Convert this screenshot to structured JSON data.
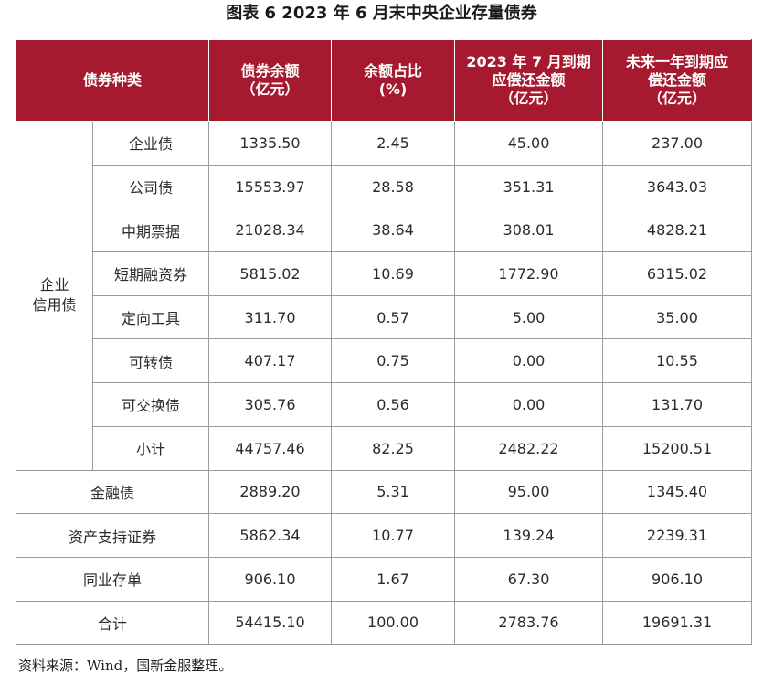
{
  "title": "图表 6  2023 年 6 月末中央企业存量债券",
  "headers": {
    "type": "债券种类",
    "balance": [
      "债券余额",
      "（亿元）"
    ],
    "ratio": [
      "余额占比",
      "(%)"
    ],
    "july_due": [
      "2023 年 7 月到期",
      "应偿还金额",
      "（亿元）"
    ],
    "year_due": [
      "未来一年到期应",
      "偿还金额",
      "（亿元）"
    ]
  },
  "group_label": [
    "企业",
    "信用债"
  ],
  "group_rows": [
    {
      "name": "企业债",
      "balance": "1335.50",
      "ratio": "2.45",
      "july_due": "45.00",
      "year_due": "237.00"
    },
    {
      "name": "公司债",
      "balance": "15553.97",
      "ratio": "28.58",
      "july_due": "351.31",
      "year_due": "3643.03"
    },
    {
      "name": "中期票据",
      "balance": "21028.34",
      "ratio": "38.64",
      "july_due": "308.01",
      "year_due": "4828.21"
    },
    {
      "name": "短期融资券",
      "balance": "5815.02",
      "ratio": "10.69",
      "july_due": "1772.90",
      "year_due": "6315.02"
    },
    {
      "name": "定向工具",
      "balance": "311.70",
      "ratio": "0.57",
      "july_due": "5.00",
      "year_due": "35.00"
    },
    {
      "name": "可转债",
      "balance": "407.17",
      "ratio": "0.75",
      "july_due": "0.00",
      "year_due": "10.55"
    },
    {
      "name": "可交换债",
      "balance": "305.76",
      "ratio": "0.56",
      "july_due": "0.00",
      "year_due": "131.70"
    },
    {
      "name": "小计",
      "balance": "44757.46",
      "ratio": "82.25",
      "july_due": "2482.22",
      "year_due": "15200.51"
    }
  ],
  "other_rows": [
    {
      "name": "金融债",
      "balance": "2889.20",
      "ratio": "5.31",
      "july_due": "95.00",
      "year_due": "1345.40"
    },
    {
      "name": "资产支持证券",
      "balance": "5862.34",
      "ratio": "10.77",
      "july_due": "139.24",
      "year_due": "2239.31"
    },
    {
      "name": "同业存单",
      "balance": "906.10",
      "ratio": "1.67",
      "july_due": "67.30",
      "year_due": "906.10"
    },
    {
      "name": "合计",
      "balance": "54415.10",
      "ratio": "100.00",
      "july_due": "2783.76",
      "year_due": "19691.31"
    }
  ],
  "source": "资料来源：Wind，国新金服整理。",
  "colors": {
    "header_bg": "#a6192e",
    "header_text": "#ffffff",
    "border": "#9a9a9a"
  }
}
